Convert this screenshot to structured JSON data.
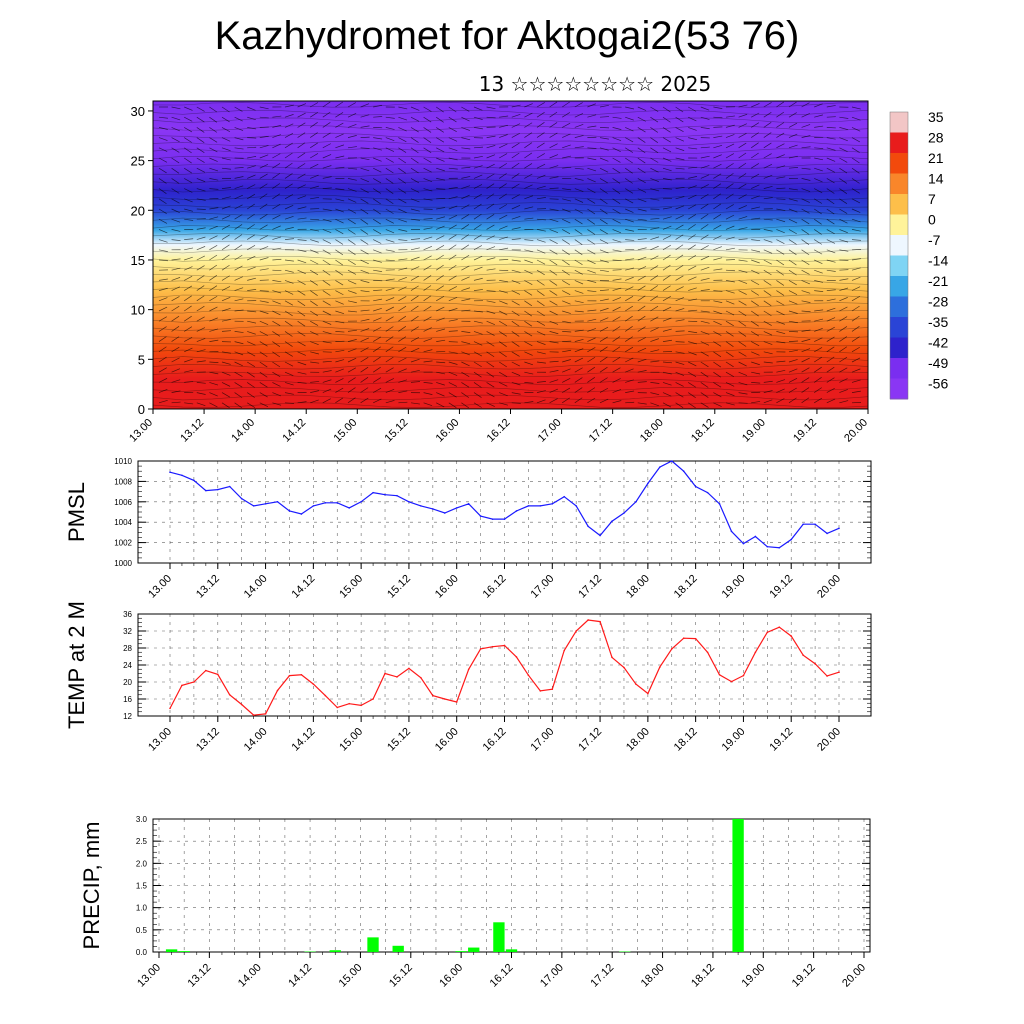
{
  "header": {
    "title": "Kazhydromet for Aktogai2(53 76)",
    "subtitle": "13 ☆☆☆☆☆☆☆☆ 2025"
  },
  "chart_data": [
    {
      "type": "heatmap",
      "name": "cross-section",
      "x_tick_labels": [
        "13.00",
        "13.12",
        "14.00",
        "14.12",
        "15.00",
        "15.12",
        "16.00",
        "16.12",
        "17.00",
        "17.12",
        "18.00",
        "18.12",
        "19.00",
        "19.12",
        "20.00"
      ],
      "y_ticks": [
        0,
        5,
        10,
        15,
        20,
        25,
        30
      ],
      "ylim": [
        0,
        31
      ],
      "colorbar_labels": [
        "35",
        "28",
        "21",
        "14",
        "7",
        "0",
        "-7",
        "-14",
        "-21",
        "-28",
        "-35",
        "-42",
        "-49",
        "-56"
      ],
      "colorbar_colors": [
        "#f2c6c6",
        "#e81c1c",
        "#f24a0c",
        "#f9862a",
        "#fdbf4a",
        "#fff39a",
        "#eef7ff",
        "#7fd4f4",
        "#38a6e6",
        "#2d6fdc",
        "#2a44d6",
        "#2e22cc",
        "#7a2ef0",
        "#8a36f4"
      ],
      "level_profile": [
        {
          "height": 0,
          "value": 30
        },
        {
          "height": 3,
          "value": 26
        },
        {
          "height": 6,
          "value": 21
        },
        {
          "height": 9,
          "value": 14
        },
        {
          "height": 12,
          "value": 7
        },
        {
          "height": 15,
          "value": -2
        },
        {
          "height": 16.5,
          "value": -10
        },
        {
          "height": 18,
          "value": -22
        },
        {
          "height": 20,
          "value": -32
        },
        {
          "height": 22,
          "value": -42
        },
        {
          "height": 25,
          "value": -50
        },
        {
          "height": 28,
          "value": -55
        },
        {
          "height": 31,
          "value": -52
        }
      ]
    },
    {
      "type": "line",
      "name": "pmsl",
      "ylabel": "PMSL",
      "ylim": [
        1000,
        1010
      ],
      "y_ticks": [
        1000,
        1002,
        1004,
        1006,
        1008,
        1010
      ],
      "x_tick_labels": [
        "13.00",
        "13.12",
        "14.00",
        "14.12",
        "15.00",
        "15.12",
        "16.00",
        "16.12",
        "17.00",
        "17.12",
        "18.00",
        "18.12",
        "19.00",
        "19.12",
        "20.00"
      ],
      "color": "#1a1aff",
      "values": [
        1008.9,
        1008.6,
        1008.1,
        1007.1,
        1007.2,
        1007.5,
        1006.3,
        1005.6,
        1005.8,
        1006.0,
        1005.1,
        1004.8,
        1005.6,
        1005.9,
        1005.9,
        1005.4,
        1006.0,
        1006.9,
        1006.7,
        1006.6,
        1006.0,
        1005.6,
        1005.3,
        1004.9,
        1005.4,
        1005.8,
        1004.6,
        1004.3,
        1004.3,
        1005.1,
        1005.6,
        1005.6,
        1005.8,
        1006.5,
        1005.6,
        1003.6,
        1002.7,
        1004.1,
        1004.9,
        1006.0,
        1007.8,
        1009.4,
        1010.0,
        1009.0,
        1007.5,
        1006.9,
        1005.8,
        1003.1,
        1001.9,
        1002.6,
        1001.6,
        1001.5,
        1002.3,
        1003.8,
        1003.8,
        1002.9,
        1003.4
      ]
    },
    {
      "type": "line",
      "name": "temp",
      "ylabel": "TEMP at 2 M",
      "ylim": [
        12,
        36
      ],
      "y_ticks": [
        12,
        16,
        20,
        24,
        28,
        32,
        36
      ],
      "x_tick_labels": [
        "13.00",
        "13.12",
        "14.00",
        "14.12",
        "15.00",
        "15.12",
        "16.00",
        "16.12",
        "17.00",
        "17.12",
        "18.00",
        "18.12",
        "19.00",
        "19.12",
        "20.00"
      ],
      "color": "#ff1a1a",
      "values": [
        13.8,
        19.2,
        20.0,
        22.7,
        21.8,
        17.0,
        14.7,
        12.2,
        12.5,
        18.0,
        21.5,
        21.7,
        19.5,
        16.8,
        14.0,
        14.9,
        14.5,
        16.0,
        22.0,
        21.2,
        23.2,
        21.0,
        16.8,
        16.0,
        15.3,
        23.0,
        27.8,
        28.3,
        28.6,
        25.9,
        21.6,
        17.9,
        18.3,
        27.4,
        32.0,
        34.6,
        34.2,
        25.8,
        23.4,
        19.5,
        17.3,
        23.5,
        27.8,
        30.3,
        30.2,
        27.0,
        21.7,
        20.1,
        21.5,
        27.0,
        31.7,
        32.9,
        30.8,
        26.3,
        24.3,
        21.4,
        22.3
      ]
    },
    {
      "type": "bar",
      "name": "precip",
      "ylabel": "PRECIP, mm",
      "ylim": [
        0,
        3
      ],
      "y_ticks": [
        "0.0",
        "0.5",
        "1.0",
        "1.5",
        "2.0",
        "2.5",
        "3.0"
      ],
      "x_tick_labels": [
        "13.00",
        "13.12",
        "14.00",
        "14.12",
        "15.00",
        "15.12",
        "16.00",
        "16.12",
        "17.00",
        "17.12",
        "18.00",
        "18.12",
        "19.00",
        "19.12",
        "20.00"
      ],
      "color": "#00ff00",
      "values": [
        0,
        0.06,
        0.02,
        0,
        0,
        0,
        0,
        0,
        0,
        0,
        0,
        0,
        0.01,
        0,
        0.04,
        0,
        0,
        0.33,
        0,
        0.14,
        0,
        0,
        0,
        0,
        0.02,
        0.1,
        0,
        0.67,
        0.06,
        0,
        0,
        0,
        0,
        0,
        0,
        0,
        0,
        0.01,
        0,
        0,
        0,
        0,
        0,
        0,
        0,
        0,
        3.0,
        0,
        0,
        0,
        0,
        0,
        0,
        0,
        0,
        0,
        0
      ]
    }
  ]
}
